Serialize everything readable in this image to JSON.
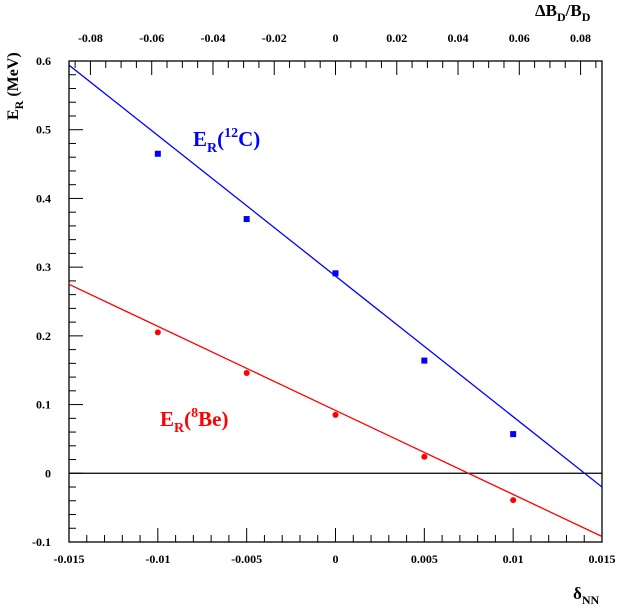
{
  "chart_data": {
    "type": "scatter",
    "xlabel": "δ",
    "xlabel_sub": "NN",
    "ylabel": "E",
    "ylabel_sub": "R",
    "ylabel_unit": "(MeV)",
    "x2label": "ΔB",
    "x2label_sub1": "D",
    "x2label_mid": "/B",
    "x2label_sub2": "D",
    "xlim": [
      -0.015,
      0.015
    ],
    "ylim": [
      -0.1,
      0.6
    ],
    "x2lim": [
      -0.087,
      0.087
    ],
    "x_ticks": [
      -0.015,
      -0.01,
      -0.005,
      0,
      0.005,
      0.01,
      0.015
    ],
    "x_tick_labels": [
      "-0.015",
      "-0.01",
      "-0.005",
      "0",
      "0.005",
      "0.01",
      "0.015"
    ],
    "y_ticks": [
      -0.1,
      0,
      0.1,
      0.2,
      0.3,
      0.4,
      0.5,
      0.6
    ],
    "y_tick_labels": [
      "-0.1",
      "0",
      "0.1",
      "0.2",
      "0.3",
      "0.4",
      "0.5",
      "0.6"
    ],
    "x2_ticks": [
      -0.08,
      -0.06,
      -0.04,
      -0.02,
      0,
      0.02,
      0.04,
      0.06,
      0.08
    ],
    "x2_tick_labels": [
      "-0.08",
      "-0.06",
      "-0.04",
      "-0.02",
      "0",
      "0.02",
      "0.04",
      "0.06",
      "0.08"
    ],
    "zero_line": 0,
    "grid": false,
    "series": [
      {
        "label_main": "E",
        "label_sub": "R",
        "label_open": "(",
        "label_sup": "12",
        "label_rest": "C)",
        "color": "#0000ff",
        "marker": "square",
        "x": [
          -0.01,
          -0.005,
          0,
          0.005,
          0.01
        ],
        "y": [
          0.465,
          0.37,
          0.291,
          0.164,
          0.057
        ],
        "fit": {
          "x": [
            -0.015,
            0.015
          ],
          "y": [
            0.594,
            -0.02
          ]
        }
      },
      {
        "label_main": "E",
        "label_sub": "R",
        "label_open": "(",
        "label_sup": "8",
        "label_rest": "Be)",
        "color": "#ff0000",
        "marker": "circle",
        "x": [
          -0.01,
          -0.005,
          0,
          0.005,
          0.01
        ],
        "y": [
          0.205,
          0.146,
          0.085,
          0.024,
          -0.039
        ],
        "fit": {
          "x": [
            -0.015,
            0.015
          ],
          "y": [
            0.275,
            -0.092
          ]
        }
      }
    ]
  }
}
